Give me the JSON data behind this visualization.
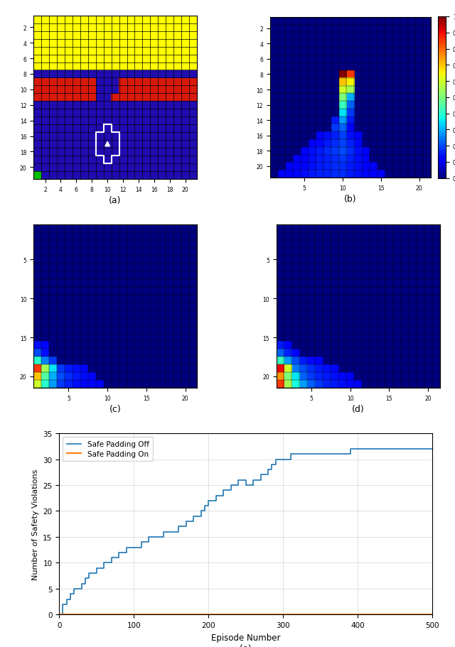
{
  "fig_width": 6.4,
  "fig_height": 9.12,
  "N": 21,
  "yellow_color": [
    1.0,
    1.0,
    0.0
  ],
  "red_color": [
    0.85,
    0.1,
    0.05
  ],
  "blue_color": [
    0.13,
    0.05,
    0.7
  ],
  "green_color": [
    0.0,
    0.75,
    0.0
  ],
  "subplot_labels": [
    "(a)",
    "(b)",
    "(c)",
    "(d)",
    "(e)"
  ],
  "line_blue": "#1f77b4",
  "line_red": "#ff7f0e",
  "ep_line_blue": [
    0,
    5,
    10,
    15,
    20,
    25,
    30,
    35,
    40,
    50,
    60,
    70,
    80,
    90,
    100,
    110,
    120,
    130,
    140,
    150,
    160,
    170,
    180,
    190,
    195,
    200,
    210,
    220,
    230,
    240,
    250,
    260,
    270,
    280,
    285,
    290,
    295,
    300,
    310,
    320,
    330,
    340,
    350,
    360,
    370,
    380,
    390,
    400,
    420,
    450,
    470,
    500
  ],
  "viol_blue": [
    0,
    2,
    3,
    4,
    5,
    5,
    6,
    7,
    8,
    9,
    10,
    11,
    12,
    13,
    13,
    14,
    15,
    15,
    16,
    16,
    17,
    18,
    19,
    20,
    21,
    22,
    23,
    24,
    25,
    26,
    25,
    26,
    27,
    28,
    29,
    30,
    30,
    30,
    31,
    31,
    31,
    31,
    31,
    31,
    31,
    31,
    32,
    32,
    32,
    32,
    32,
    32
  ],
  "ylabel_e": "Number of Safety Violations",
  "xlabel_e": "Episode Number",
  "legend_off": "Safe Padding Off",
  "legend_on": "Safe Padding On",
  "ylim_e": [
    0,
    35
  ],
  "xlim_e": [
    0,
    500
  ],
  "yticks_e": [
    0,
    5,
    10,
    15,
    20,
    25,
    30,
    35
  ],
  "xticks_e": [
    0,
    100,
    200,
    300,
    400,
    500
  ]
}
